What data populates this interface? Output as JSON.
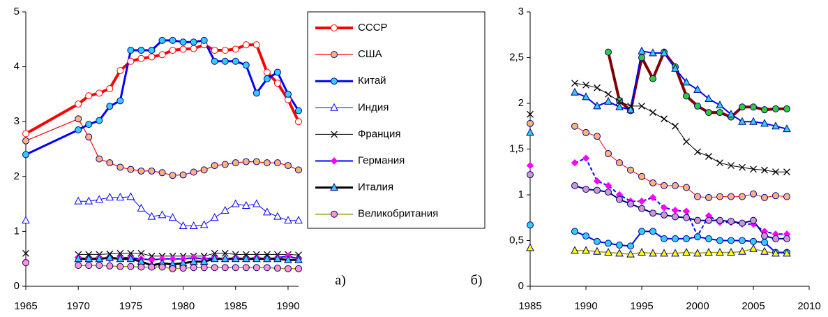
{
  "chart_data": [
    {
      "type": "line",
      "x": [
        1965,
        1970,
        1971,
        1972,
        1973,
        1974,
        1975,
        1976,
        1977,
        1978,
        1979,
        1980,
        1981,
        1982,
        1983,
        1984,
        1985,
        1986,
        1987,
        1988,
        1989,
        1990,
        1991
      ],
      "xlim": [
        1965,
        1991
      ],
      "xticks": [
        1965,
        1970,
        1975,
        1980,
        1985,
        1990
      ],
      "ylim": [
        0,
        5
      ],
      "yticks": [
        0,
        1,
        2,
        3,
        4,
        5
      ],
      "annotation": "а)",
      "series": [
        {
          "name": "СССР",
          "color": "#ff0000",
          "width": 4,
          "marker": "circle",
          "marker_color": "#ffffff",
          "connect": true,
          "values": [
            2.78,
            3.32,
            3.47,
            3.52,
            3.6,
            3.93,
            4.1,
            4.15,
            4.18,
            4.22,
            4.3,
            4.32,
            4.33,
            4.4,
            4.3,
            4.3,
            4.32,
            4.4,
            4.4,
            3.9,
            3.7,
            3.4,
            3.0
          ]
        },
        {
          "name": "США",
          "color": "#ff0000",
          "width": 1.2,
          "marker": "circle",
          "marker_color": "#ffb380",
          "connect": true,
          "values": [
            2.65,
            3.05,
            2.72,
            2.32,
            2.25,
            2.17,
            2.13,
            2.1,
            2.1,
            2.07,
            2.02,
            2.03,
            2.08,
            2.12,
            2.2,
            2.22,
            2.25,
            2.27,
            2.27,
            2.25,
            2.25,
            2.2,
            2.12
          ]
        },
        {
          "name": "Китай",
          "color": "#0000ff",
          "width": 3,
          "marker": "circle",
          "marker_color": "#33ccff",
          "connect": true,
          "values": [
            2.4,
            2.85,
            2.95,
            3.02,
            3.28,
            3.38,
            4.3,
            4.3,
            4.3,
            4.48,
            4.48,
            4.45,
            4.45,
            4.48,
            4.1,
            4.1,
            4.1,
            4.03,
            3.52,
            3.78,
            3.9,
            3.5,
            3.2
          ]
        },
        {
          "name": "Индия",
          "color": "#0000ff",
          "width": 1,
          "marker": "triangle",
          "marker_color": "#ffffff",
          "values": [
            1.2,
            1.55,
            1.55,
            1.58,
            1.62,
            1.62,
            1.63,
            1.42,
            1.27,
            1.3,
            1.25,
            1.1,
            1.1,
            1.12,
            1.25,
            1.38,
            1.5,
            1.47,
            1.5,
            1.35,
            1.27,
            1.2,
            1.2
          ]
        },
        {
          "name": "Франция",
          "color": "#000000",
          "width": 1,
          "marker": "x",
          "marker_color": "#000000",
          "values": [
            0.6,
            0.58,
            0.58,
            0.58,
            0.59,
            0.6,
            0.6,
            0.6,
            0.55,
            0.55,
            0.55,
            0.55,
            0.55,
            0.55,
            0.6,
            0.6,
            0.58,
            0.58,
            0.58,
            0.58,
            0.58,
            0.58,
            0.57
          ]
        },
        {
          "name": "Германия",
          "color": "#0000ff",
          "width": 2,
          "marker": "diamond",
          "marker_color": "#ff00ff",
          "values": [
            0.45,
            0.52,
            0.5,
            0.52,
            0.5,
            0.52,
            0.52,
            0.5,
            0.48,
            0.5,
            0.5,
            0.5,
            0.52,
            0.5,
            0.52,
            0.5,
            0.52,
            0.5,
            0.52,
            0.5,
            0.52,
            0.55,
            0.5
          ]
        },
        {
          "name": "Италия",
          "color": "#000000",
          "width": 3,
          "marker": "triangle",
          "marker_color": "#33ccff",
          "values": [
            null,
            0.5,
            0.5,
            0.5,
            0.52,
            0.5,
            0.5,
            0.45,
            0.38,
            0.42,
            0.4,
            0.42,
            0.45,
            0.45,
            0.5,
            0.5,
            0.5,
            0.5,
            0.5,
            0.5,
            0.5,
            0.48,
            0.48
          ]
        },
        {
          "name": "Великобритания",
          "color": "#999900",
          "width": 1.5,
          "marker": "circle",
          "marker_color": "#ff99cc",
          "values": [
            0.43,
            0.38,
            0.38,
            0.38,
            0.37,
            0.36,
            0.36,
            0.35,
            0.35,
            0.35,
            0.32,
            0.33,
            0.34,
            0.34,
            0.34,
            0.34,
            0.34,
            0.34,
            0.34,
            0.34,
            0.33,
            0.32,
            0.32
          ]
        }
      ]
    },
    {
      "type": "line",
      "x": [
        1985,
        1989,
        1990,
        1991,
        1992,
        1993,
        1994,
        1995,
        1996,
        1997,
        1998,
        1999,
        2000,
        2001,
        2002,
        2003,
        2004,
        2005,
        2006,
        2007,
        2008
      ],
      "xlim": [
        1985,
        2010
      ],
      "xticks": [
        1985,
        1990,
        1995,
        2000,
        2005,
        2010
      ],
      "ylim": [
        0,
        3
      ],
      "yticks": [
        0,
        {
          "value": 0.5,
          "label": "0,5"
        },
        1,
        {
          "value": 1.5,
          "label": "1,5"
        },
        2,
        {
          "value": 2.5,
          "label": "2,5"
        },
        3
      ],
      "annotation": "б)",
      "series": [
        {
          "color": "#800000",
          "width": 4,
          "marker": "circle",
          "marker_color": "#33cc33",
          "values": [
            null,
            null,
            null,
            null,
            2.56,
            2.03,
            1.92,
            2.5,
            2.27,
            2.56,
            2.4,
            2.08,
            1.97,
            1.9,
            1.9,
            1.85,
            1.96,
            1.96,
            1.93,
            1.94,
            1.94
          ]
        },
        {
          "color": "#0000ff",
          "width": 2,
          "marker": "triangle",
          "marker_color": "#33ccff",
          "values": [
            1.68,
            2.12,
            2.07,
            1.97,
            2.02,
            1.96,
            1.93,
            2.57,
            2.55,
            2.55,
            2.38,
            2.23,
            2.15,
            2.05,
            1.98,
            1.88,
            1.8,
            1.8,
            1.78,
            1.75,
            1.72
          ]
        },
        {
          "color": "#000000",
          "width": 1,
          "marker": "x",
          "marker_color": "#000000",
          "values": [
            1.88,
            2.22,
            2.2,
            2.17,
            2.1,
            2.02,
            1.97,
            1.97,
            1.9,
            1.83,
            1.75,
            1.58,
            1.47,
            1.42,
            1.35,
            1.32,
            1.3,
            1.28,
            1.27,
            1.25,
            1.25
          ]
        },
        {
          "color": "#ff0000",
          "width": 1,
          "marker": "circle",
          "marker_color": "#ffb380",
          "values": [
            1.78,
            1.75,
            1.68,
            1.64,
            1.45,
            1.35,
            1.27,
            1.2,
            1.13,
            1.1,
            1.1,
            1.08,
            0.98,
            0.97,
            0.98,
            0.98,
            0.98,
            1.01,
            0.97,
            0.99,
            0.98
          ]
        },
        {
          "color": "#0000ff",
          "width": 2,
          "dash": true,
          "marker": "diamond",
          "marker_color": "#ff00ff",
          "values": [
            1.32,
            1.35,
            1.4,
            1.15,
            1.1,
            1.0,
            0.93,
            0.93,
            0.97,
            0.86,
            0.83,
            0.82,
            0.55,
            0.77,
            0.7,
            0.7,
            0.68,
            0.68,
            0.6,
            0.57,
            0.57
          ]
        },
        {
          "color": "#000080",
          "width": 2,
          "marker": "circle",
          "marker_color": "#cc99cc",
          "values": [
            1.22,
            1.1,
            1.06,
            1.05,
            1.03,
            0.95,
            0.9,
            0.85,
            0.8,
            0.78,
            0.76,
            0.75,
            0.72,
            0.72,
            0.72,
            0.71,
            0.69,
            0.72,
            0.55,
            0.52,
            0.52
          ]
        },
        {
          "color": "#0000ff",
          "width": 2,
          "marker": "circle",
          "marker_color": "#33ccff",
          "values": [
            0.67,
            0.6,
            0.55,
            0.49,
            0.47,
            0.45,
            0.44,
            0.6,
            0.6,
            0.52,
            0.52,
            0.52,
            0.54,
            0.52,
            0.5,
            0.5,
            0.5,
            0.49,
            0.48,
            0.37,
            0.37
          ]
        },
        {
          "color": "#999900",
          "width": 1.5,
          "marker": "triangle",
          "marker_color": "#ffff00",
          "values": [
            0.42,
            0.39,
            0.39,
            0.38,
            0.37,
            0.36,
            0.35,
            0.37,
            0.36,
            0.36,
            0.36,
            0.37,
            0.36,
            0.37,
            0.37,
            0.37,
            0.38,
            0.41,
            0.38,
            0.36,
            0.36
          ]
        }
      ]
    }
  ]
}
